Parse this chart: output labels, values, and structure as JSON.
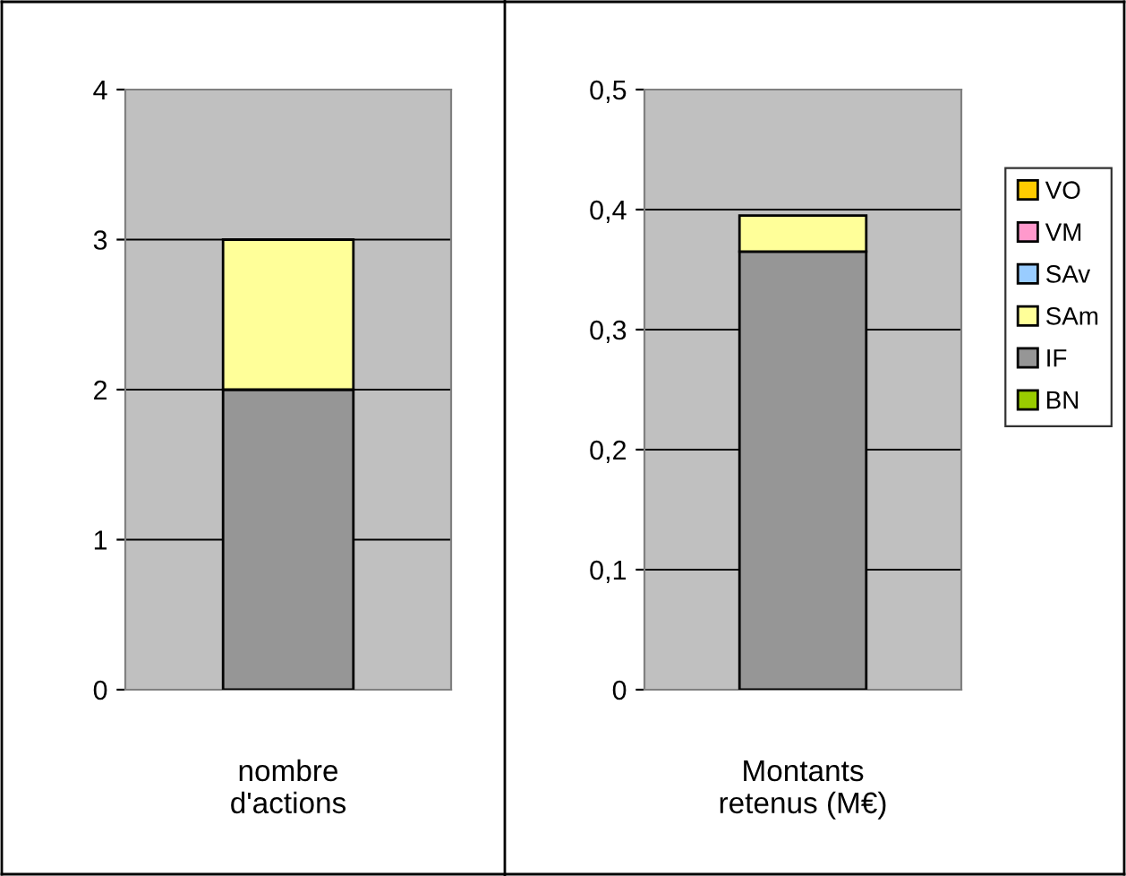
{
  "chart_data": [
    {
      "type": "bar",
      "stacked": true,
      "categories": [
        "nombre\nd'actions"
      ],
      "ylim": [
        0,
        4
      ],
      "yticks": [
        0,
        1,
        2,
        3,
        4
      ],
      "grid": "y",
      "series": [
        {
          "color": "#99cc00",
          "values": [
            0
          ]
        },
        {
          "color": "#969696",
          "values": [
            2
          ]
        },
        {
          "color": "#ffff99",
          "values": [
            1
          ]
        },
        {
          "color": "#99ccff",
          "values": [
            0
          ]
        },
        {
          "color": "#ff99cc",
          "values": [
            0
          ]
        },
        {
          "color": "#ffcc00",
          "values": [
            0
          ]
        }
      ]
    },
    {
      "type": "bar",
      "stacked": true,
      "categories": [
        "Montants\nretenus (M€)"
      ],
      "ylim": [
        0,
        0.5
      ],
      "yticks": [
        {
          "value": 0,
          "label": "0"
        },
        {
          "value": 0.1,
          "label": "0,1"
        },
        {
          "value": 0.2,
          "label": "0,2"
        },
        {
          "value": 0.3,
          "label": "0,3"
        },
        {
          "value": 0.4,
          "label": "0,4"
        },
        {
          "value": 0.5,
          "label": "0,5"
        }
      ],
      "grid": "y",
      "legend": "right",
      "series": [
        {
          "name": "BN",
          "color": "#99cc00",
          "values": [
            0
          ]
        },
        {
          "name": "IF",
          "color": "#969696",
          "values": [
            0.365
          ]
        },
        {
          "name": "SAm",
          "color": "#ffff99",
          "values": [
            0.03
          ]
        },
        {
          "name": "SAv",
          "color": "#99ccff",
          "values": [
            0
          ]
        },
        {
          "name": "VM",
          "color": "#ff99cc",
          "values": [
            0
          ]
        },
        {
          "name": "VO",
          "color": "#ffcc00",
          "values": [
            0
          ]
        }
      ]
    }
  ]
}
